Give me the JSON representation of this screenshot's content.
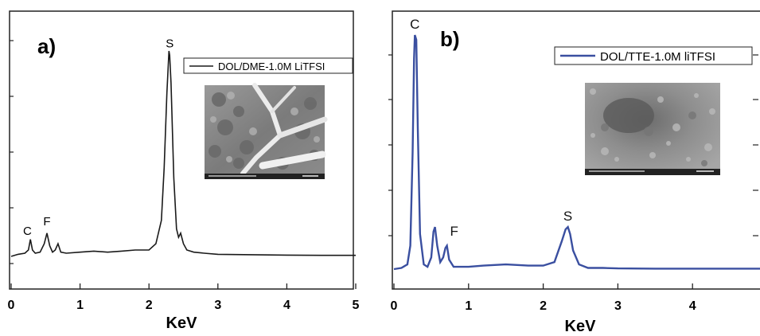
{
  "chart_data": [
    {
      "type": "line",
      "panel_label": "a)",
      "xlabel": "KeV",
      "ylabel": "",
      "xlim": [
        0,
        5
      ],
      "x_ticks": [
        "0",
        "1",
        "2",
        "3",
        "4",
        "5"
      ],
      "legend_position": "top-right",
      "series": [
        {
          "name": "DOL/DME-1.0M LiTFSI",
          "color": "#1a1a1a",
          "x": [
            0.0,
            0.1,
            0.2,
            0.25,
            0.28,
            0.31,
            0.35,
            0.42,
            0.48,
            0.52,
            0.56,
            0.6,
            0.64,
            0.68,
            0.72,
            0.8,
            1.0,
            1.2,
            1.4,
            1.6,
            1.8,
            2.0,
            2.1,
            2.18,
            2.22,
            2.26,
            2.29,
            2.3,
            2.32,
            2.36,
            2.4,
            2.43,
            2.46,
            2.5,
            2.55,
            2.65,
            2.8,
            3.0,
            3.5,
            4.0,
            4.5,
            5.0
          ],
          "y": [
            0.03,
            0.04,
            0.045,
            0.06,
            0.11,
            0.06,
            0.045,
            0.05,
            0.09,
            0.14,
            0.08,
            0.05,
            0.06,
            0.09,
            0.05,
            0.045,
            0.05,
            0.055,
            0.05,
            0.055,
            0.06,
            0.06,
            0.09,
            0.2,
            0.45,
            0.8,
            1.0,
            0.98,
            0.85,
            0.4,
            0.16,
            0.12,
            0.14,
            0.09,
            0.06,
            0.05,
            0.045,
            0.04,
            0.038,
            0.036,
            0.035,
            0.035
          ]
        }
      ],
      "annotations": [
        {
          "text": "C",
          "x": 0.27
        },
        {
          "text": "F",
          "x": 0.52
        },
        {
          "text": "S",
          "x": 2.3
        }
      ]
    },
    {
      "type": "line",
      "panel_label": "b)",
      "xlabel": "KeV",
      "ylabel": "",
      "xlim": [
        0,
        5
      ],
      "x_ticks": [
        "0",
        "1",
        "2",
        "3",
        "4"
      ],
      "legend_position": "top-right",
      "series": [
        {
          "name": "DOL/TTE-1.0M liTFSI",
          "color": "#3a4fa0",
          "x": [
            0.0,
            0.1,
            0.18,
            0.22,
            0.25,
            0.27,
            0.28,
            0.3,
            0.32,
            0.35,
            0.4,
            0.45,
            0.5,
            0.53,
            0.55,
            0.58,
            0.62,
            0.66,
            0.69,
            0.71,
            0.74,
            0.8,
            1.0,
            1.2,
            1.5,
            1.8,
            2.0,
            2.15,
            2.25,
            2.3,
            2.33,
            2.36,
            2.4,
            2.48,
            2.6,
            2.8,
            3.0,
            3.5,
            4.0,
            4.5,
            5.0
          ],
          "y": [
            0.0,
            0.005,
            0.02,
            0.1,
            0.5,
            0.9,
            1.0,
            0.98,
            0.6,
            0.15,
            0.02,
            0.01,
            0.05,
            0.16,
            0.18,
            0.1,
            0.03,
            0.05,
            0.09,
            0.1,
            0.04,
            0.01,
            0.01,
            0.015,
            0.02,
            0.015,
            0.015,
            0.03,
            0.12,
            0.17,
            0.18,
            0.15,
            0.08,
            0.02,
            0.005,
            0.005,
            0.003,
            0.002,
            0.002,
            0.002,
            0.002
          ]
        }
      ],
      "annotations": [
        {
          "text": "C",
          "x": 0.28
        },
        {
          "text": "F",
          "x": 0.7
        },
        {
          "text": "S",
          "x": 2.33
        }
      ]
    }
  ]
}
